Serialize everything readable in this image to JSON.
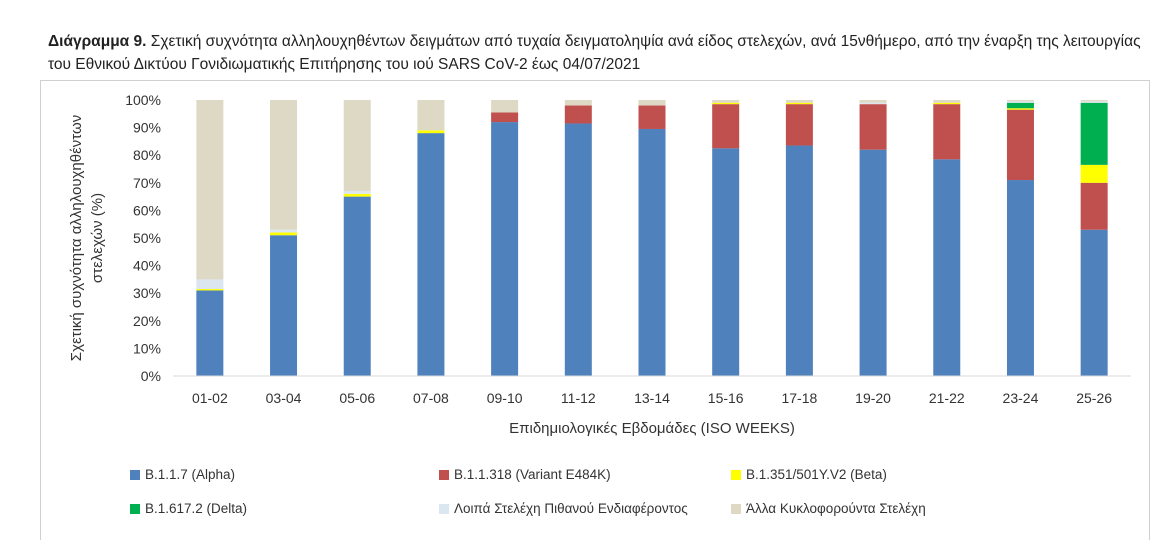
{
  "caption": {
    "lead": "Διάγραμμα 9.",
    "text": " Σχετική συχνότητα αλληλουχηθέντων δειγμάτων από τυχαία δειγματοληψία ανά είδος στελεχών, ανά 15νθήμερο, από την έναρξη της λειτουργίας του Εθνικού Δικτύου Γονιδιωματικής Επιτήρησης του ιού SARS CoV-2 έως 04/07/2021"
  },
  "chart_data": {
    "type": "bar",
    "stacked": true,
    "categories": [
      "01-02",
      "03-04",
      "05-06",
      "07-08",
      "09-10",
      "11-12",
      "13-14",
      "15-16",
      "17-18",
      "19-20",
      "21-22",
      "23-24",
      "25-26"
    ],
    "series": [
      {
        "name": "B.1.1.7 (Alpha)",
        "color": "#4f81bd",
        "values": [
          31,
          51,
          65,
          88,
          92,
          91.5,
          89.5,
          82.5,
          83.5,
          82,
          78.5,
          71,
          53
        ]
      },
      {
        "name": "B.1.1.318 (Variant E484K)",
        "color": "#c0504d",
        "values": [
          0,
          0,
          0,
          0,
          3.5,
          6.5,
          8.5,
          16,
          15,
          16.5,
          20,
          25.5,
          17
        ]
      },
      {
        "name": "B.1.351/501Y.V2 (Beta)",
        "color": "#ffff00",
        "values": [
          0.5,
          1,
          1,
          1,
          0,
          0,
          0,
          0.5,
          0.5,
          0,
          0.5,
          0.5,
          6.5
        ]
      },
      {
        "name": "B.1.617.2 (Delta)",
        "color": "#00b050",
        "values": [
          0,
          0,
          0,
          0,
          0,
          0,
          0,
          0,
          0,
          0,
          0,
          2,
          22.5
        ]
      },
      {
        "name": "Λοιπά Στελέχη Πιθανού Ενδιαφέροντος",
        "color": "#dce6f1",
        "values": [
          3.5,
          1,
          1,
          0,
          0,
          0,
          0,
          0,
          0,
          0.5,
          0,
          0.5,
          0.5
        ]
      },
      {
        "name": "Άλλα Κυκλοφορούντα Στελέχη",
        "color": "#ddd9c4",
        "values": [
          65,
          47,
          33,
          11,
          4.5,
          2,
          2,
          1,
          1,
          1,
          1,
          0.5,
          0.5
        ]
      }
    ],
    "xlabel": "Επιδημιολογικές Εβδομάδες (ISO WEEKS)",
    "ylabel": [
      "Σχετική συχνότητα αλληλουχηθέντων",
      "στελεχών (%)"
    ],
    "ylim": [
      0,
      100
    ],
    "yticks": [
      "0%",
      "10%",
      "20%",
      "30%",
      "40%",
      "50%",
      "60%",
      "70%",
      "80%",
      "90%",
      "100%"
    ],
    "grid": false,
    "legend_position": "bottom"
  }
}
